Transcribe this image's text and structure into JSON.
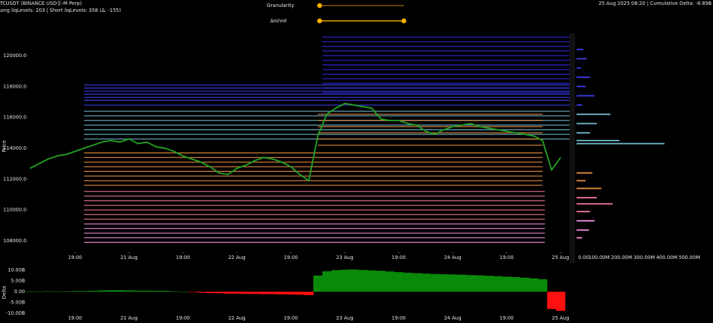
{
  "header": {
    "symbol": "BTCUSDT (BINANCE USDⓈ-M Perp)",
    "levels": "Long liqLevels: 203 | Short liqLevels: 358 (Δ: -155)",
    "status": "25 Aug 2025 08:20 | Cumulative Delta: -8.89B"
  },
  "controls": {
    "granularity": "Granularity",
    "oi_vol": "Δoi/vol"
  },
  "chart_data": [
    {
      "type": "line",
      "y_label": "Price",
      "color": "#22a022",
      "x": [
        2,
        4,
        6,
        8,
        10,
        12,
        14,
        16,
        18,
        20,
        22,
        24,
        26,
        28,
        30,
        32,
        34,
        36,
        38,
        40,
        42,
        44,
        46,
        48,
        50,
        52,
        54,
        56,
        58,
        60,
        62,
        64,
        66,
        68,
        70,
        72,
        74,
        76,
        78,
        80,
        82,
        84,
        86,
        88,
        90,
        92,
        94,
        96,
        98,
        100,
        102,
        104,
        106,
        108,
        110,
        112,
        114,
        116,
        118,
        120
      ],
      "values": [
        112700,
        113000,
        113300,
        113500,
        113600,
        113800,
        114000,
        114200,
        114400,
        114500,
        114400,
        114600,
        114300,
        114400,
        114100,
        114000,
        113800,
        113500,
        113300,
        113100,
        112800,
        112400,
        112300,
        112700,
        112900,
        113200,
        113400,
        113300,
        113100,
        112800,
        112300,
        111900,
        114800,
        116200,
        116600,
        116900,
        116800,
        116700,
        116600,
        115900,
        115800,
        115800,
        115600,
        115500,
        115100,
        114900,
        115200,
        115400,
        115500,
        115600,
        115400,
        115300,
        115200,
        115100,
        115000,
        114900,
        114800,
        114500,
        112600,
        113400
      ],
      "xlim": [
        1.5,
        122
      ],
      "ylim": [
        107370,
        121350
      ],
      "xticks": [
        {
          "value": 12,
          "label": "19:00"
        },
        {
          "value": 24,
          "label": "21 Aug"
        },
        {
          "value": 36,
          "label": "19:00"
        },
        {
          "value": 48,
          "label": "22 Aug"
        },
        {
          "value": 60,
          "label": "19:00"
        },
        {
          "value": 72,
          "label": "23 Aug"
        },
        {
          "value": 84,
          "label": "19:00"
        },
        {
          "value": 96,
          "label": "24 Aug"
        },
        {
          "value": 108,
          "label": "19:00"
        },
        {
          "value": 120,
          "label": "25 Aug"
        }
      ],
      "yticks": [
        {
          "value": 108000,
          "label": "108000.0"
        },
        {
          "value": 110000,
          "label": "110000.0"
        },
        {
          "value": 112000,
          "label": "112000.0"
        },
        {
          "value": 114000,
          "label": "114000.0"
        },
        {
          "value": 116000,
          "label": "116000.0"
        },
        {
          "value": 118000,
          "label": "118000.0"
        },
        {
          "value": 120000,
          "label": "120000.0"
        }
      ],
      "levels": [
        {
          "color": "#2a2ad8",
          "start": 67,
          "end": 122,
          "prices": [
            117600,
            117900,
            118200,
            118500,
            118800,
            119100,
            119400,
            119700,
            120000,
            120300,
            120600,
            120900,
            121200
          ]
        },
        {
          "color": "#3838e6",
          "start": 14,
          "end": 122,
          "prices": [
            116800,
            117100,
            117300,
            117500,
            117700,
            117900,
            118100
          ]
        },
        {
          "color": "#6fb4c8",
          "start": 14,
          "end": 122,
          "prices": [
            114600,
            114900,
            115200,
            115500,
            115800,
            116100,
            116400
          ]
        },
        {
          "color": "#e08a3c",
          "start": 66,
          "end": 116,
          "prices": [
            114200,
            114600,
            115000,
            115400,
            115800,
            116200
          ]
        },
        {
          "color": "#e08a3c",
          "start": 14,
          "end": 116,
          "prices": [
            111600,
            111900,
            112200,
            112500,
            112800,
            113100,
            113400,
            113700
          ]
        },
        {
          "color": "#e87592",
          "start": 14,
          "end": 116.5,
          "prices": [
            109400,
            109700,
            110000,
            110300,
            110600,
            110900,
            111200
          ]
        },
        {
          "color": "#f08ad8",
          "start": 14,
          "end": 116.5,
          "prices": [
            107900,
            108200,
            108500,
            108800,
            109100
          ]
        }
      ]
    },
    {
      "type": "hbar",
      "prices": [
        120400,
        119800,
        119200,
        118600,
        118000,
        117400,
        116800,
        116200,
        115600,
        115000,
        114500,
        114300,
        112400,
        111900,
        111400,
        110800,
        110400,
        109900,
        109300,
        108700,
        108200
      ],
      "values": [
        30,
        45,
        20,
        60,
        40,
        80,
        25,
        150,
        90,
        60,
        190,
        390,
        70,
        40,
        110,
        90,
        160,
        60,
        80,
        55,
        25
      ],
      "colors": [
        "#3a3ae0",
        "#3a3ae0",
        "#3a3ae0",
        "#3a3ae0",
        "#3a3ae0",
        "#3a3ae0",
        "#3a3ae0",
        "#6fb4c8",
        "#6fb4c8",
        "#6fb4c8",
        "#6fb4c8",
        "#6fb4c8",
        "#e08a3c",
        "#e08a3c",
        "#e08a3c",
        "#e87592",
        "#e87592",
        "#e87592",
        "#f08ad8",
        "#f08ad8",
        "#f08ad8"
      ],
      "xlim": [
        0,
        500
      ],
      "xticks": [
        {
          "value": 0,
          "label": "0.00"
        },
        {
          "value": 100,
          "label": "100.00M"
        },
        {
          "value": 200,
          "label": "200.00M"
        },
        {
          "value": 300,
          "label": "300.00M"
        },
        {
          "value": 400,
          "label": "400.00M"
        },
        {
          "value": 500,
          "label": "500.00M"
        }
      ]
    },
    {
      "type": "bar",
      "y_label": "Delta",
      "pos_color": "#0a8a0a",
      "neg_color": "#ff1010",
      "x": [
        2,
        4,
        6,
        8,
        10,
        12,
        14,
        16,
        18,
        20,
        22,
        24,
        26,
        28,
        30,
        32,
        34,
        36,
        38,
        40,
        42,
        44,
        46,
        48,
        50,
        52,
        54,
        56,
        58,
        60,
        62,
        64,
        66,
        68,
        70,
        72,
        74,
        76,
        78,
        80,
        82,
        84,
        86,
        88,
        90,
        92,
        94,
        96,
        98,
        100,
        102,
        104,
        106,
        108,
        110,
        112,
        114,
        116,
        118,
        120
      ],
      "values": [
        0.1,
        0.1,
        0.2,
        0.1,
        0.2,
        0.3,
        0.3,
        0.4,
        0.6,
        0.7,
        0.7,
        0.6,
        0.5,
        0.5,
        0.4,
        0.4,
        0.2,
        0.0,
        -0.2,
        -0.4,
        -0.6,
        -0.7,
        -0.9,
        -0.9,
        -1.0,
        -1.0,
        -1.1,
        -1.1,
        -1.2,
        -1.3,
        -1.4,
        -1.6,
        7.5,
        9.5,
        10.0,
        10.2,
        10.3,
        10.1,
        9.9,
        9.7,
        9.4,
        9.1,
        8.8,
        8.6,
        8.4,
        8.2,
        8.1,
        8.0,
        7.9,
        7.7,
        7.6,
        7.4,
        7.2,
        7.0,
        6.8,
        6.5,
        6.2,
        5.8,
        -8.0,
        -8.9
      ],
      "xlim": [
        1.5,
        122
      ],
      "ylim": [
        -11.6,
        11.0
      ],
      "xticks": [
        {
          "value": 12,
          "label": "19:00"
        },
        {
          "value": 24,
          "label": "21 Aug"
        },
        {
          "value": 36,
          "label": "19:00"
        },
        {
          "value": 48,
          "label": "22 Aug"
        },
        {
          "value": 60,
          "label": "19:00"
        },
        {
          "value": 72,
          "label": "23 Aug"
        },
        {
          "value": 84,
          "label": "19:00"
        },
        {
          "value": 96,
          "label": "24 Aug"
        },
        {
          "value": 108,
          "label": "19:00"
        },
        {
          "value": 120,
          "label": "25 Aug"
        }
      ],
      "yticks": [
        {
          "value": 10,
          "label": "10.00B"
        },
        {
          "value": 5,
          "label": "5.00B"
        },
        {
          "value": 0,
          "label": "0.00"
        },
        {
          "value": -5,
          "label": "-5.00B"
        },
        {
          "value": -10,
          "label": "-10.00B"
        }
      ]
    }
  ]
}
